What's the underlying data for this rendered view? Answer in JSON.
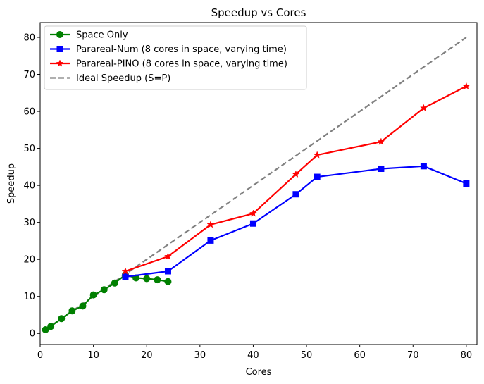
{
  "chart_data": {
    "type": "line",
    "title": "Speedup vs Cores",
    "xlabel": "Cores",
    "ylabel": "Speedup",
    "xlim": [
      0,
      82
    ],
    "ylim": [
      -3,
      84
    ],
    "xticks": [
      0,
      10,
      20,
      30,
      40,
      50,
      60,
      70,
      80
    ],
    "yticks": [
      0,
      10,
      20,
      30,
      40,
      50,
      60,
      70,
      80
    ],
    "legend_position": "top-left",
    "series": [
      {
        "name": "Space Only",
        "color": "#008000",
        "marker": "circle",
        "style": "solid",
        "x": [
          1,
          2,
          4,
          6,
          8,
          10,
          12,
          14,
          16,
          18,
          20,
          22,
          24
        ],
        "y": [
          1.0,
          1.9,
          4.0,
          6.1,
          7.4,
          10.4,
          11.8,
          13.6,
          15.8,
          15.0,
          14.8,
          14.5,
          14.0
        ]
      },
      {
        "name": "Parareal-Num (8 cores in space, varying time)",
        "color": "#0000ff",
        "marker": "square",
        "style": "solid",
        "x": [
          16,
          24,
          32,
          40,
          48,
          52,
          64,
          72,
          80
        ],
        "y": [
          15.3,
          16.8,
          25.1,
          29.7,
          37.6,
          42.3,
          44.5,
          45.2,
          40.5
        ]
      },
      {
        "name": "Parareal-PINO (8 cores in space, varying time)",
        "color": "#ff0000",
        "marker": "star",
        "style": "solid",
        "x": [
          16,
          24,
          32,
          40,
          48,
          52,
          64,
          72,
          80
        ],
        "y": [
          16.8,
          20.8,
          29.4,
          32.4,
          43.0,
          48.2,
          51.8,
          60.9,
          66.8
        ]
      },
      {
        "name": "Ideal Speedup (S=P)",
        "color": "#808080",
        "marker": "none",
        "style": "dashed",
        "x": [
          1,
          80
        ],
        "y": [
          1,
          80
        ]
      }
    ]
  }
}
